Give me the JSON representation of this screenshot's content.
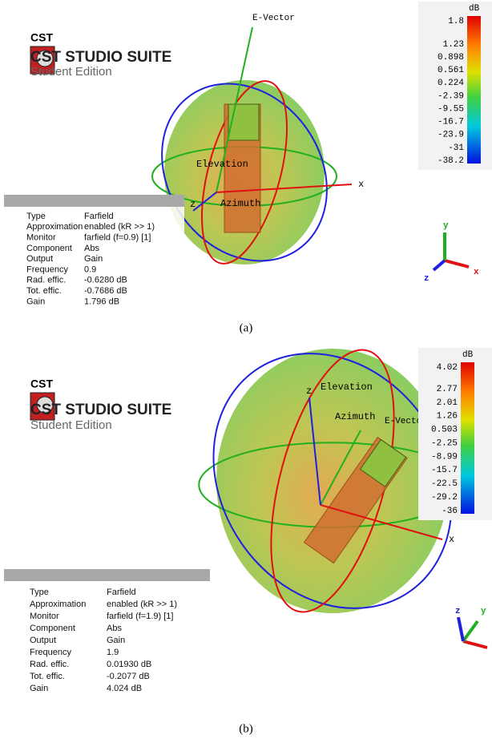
{
  "panels": [
    {
      "logo": {
        "brand": "CST",
        "product": "CST STUDIO SUITE",
        "edition": "Student Edition"
      },
      "scene_labels": {
        "e_vector": "E-Vector",
        "elevation": "Elevation",
        "azimuth": "Azimuth",
        "x_axis": "x",
        "z_axis": "z"
      },
      "triad": {
        "x": "x",
        "y": "y",
        "z": "z"
      },
      "colorbar": {
        "unit": "dB",
        "ticks": [
          "1.8",
          "1.23",
          "0.898",
          "0.561",
          "0.224",
          "-2.39",
          "-9.55",
          "-16.7",
          "-23.9",
          "-31",
          "-38.2"
        ]
      },
      "info": {
        "rows": [
          [
            "Type",
            "Farfield"
          ],
          [
            "Approximation",
            "enabled (kR >> 1)"
          ],
          [
            "Monitor",
            "farfield (f=0.9) [1]"
          ],
          [
            "Component",
            "Abs"
          ],
          [
            "Output",
            "Gain"
          ],
          [
            "Frequency",
            "0.9"
          ],
          [
            "Rad. effic.",
            "-0.6280 dB"
          ],
          [
            "Tot. effic.",
            "-0.7686 dB"
          ],
          [
            "Gain",
            "1.796 dB"
          ]
        ]
      },
      "caption": "(a)"
    },
    {
      "logo": {
        "brand": "CST",
        "product": "CST STUDIO SUITE",
        "edition": "Student Edition"
      },
      "scene_labels": {
        "e_vector": "E-Vector",
        "elevation": "Elevation",
        "azimuth": "Azimuth",
        "x_axis": "x",
        "z_axis": "z"
      },
      "triad": {
        "x": "x",
        "y": "y",
        "z": "z"
      },
      "colorbar": {
        "unit": "dB",
        "ticks": [
          "4.02",
          "2.77",
          "2.01",
          "1.26",
          "0.503",
          "-2.25",
          "-8.99",
          "-15.7",
          "-22.5",
          "-29.2",
          "-36"
        ]
      },
      "info": {
        "rows": [
          [
            "Type",
            "Farfield"
          ],
          [
            "Approximation",
            "enabled (kR >> 1)"
          ],
          [
            "Monitor",
            "farfield (f=1.9) [1]"
          ],
          [
            "Component",
            "Abs"
          ],
          [
            "Output",
            "Gain"
          ],
          [
            "Frequency",
            "1.9"
          ],
          [
            "Rad. effic.",
            "0.01930 dB"
          ],
          [
            "Tot. effic.",
            "-0.2077 dB"
          ],
          [
            "Gain",
            "4.024 dB"
          ]
        ]
      },
      "caption": "(b)"
    }
  ]
}
